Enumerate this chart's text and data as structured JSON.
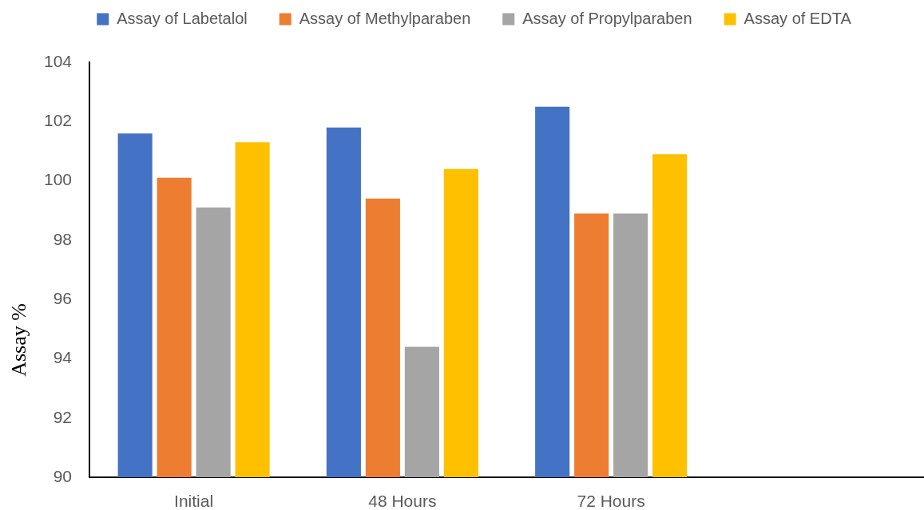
{
  "chart_data": {
    "type": "bar",
    "ylabel": "Assay %",
    "categories": [
      "Initial",
      "48 Hours",
      "72 Hours",
      null
    ],
    "series": [
      {
        "name": "Assay of Labetalol",
        "color": "#4472c4",
        "values": [
          101.6,
          101.8,
          102.5,
          null
        ]
      },
      {
        "name": "Assay of Methylparaben",
        "color": "#ed7d31",
        "values": [
          100.1,
          99.4,
          98.9,
          null
        ]
      },
      {
        "name": "Assay of Propylparaben",
        "color": "#a5a5a5",
        "values": [
          99.1,
          94.4,
          98.9,
          null
        ]
      },
      {
        "name": "Assay of EDTA",
        "color": "#ffc000",
        "values": [
          101.3,
          100.4,
          100.9,
          null
        ]
      }
    ],
    "ylim": [
      90,
      104
    ],
    "yticks": [
      90,
      92,
      94,
      96,
      98,
      100,
      102,
      104
    ],
    "grid": false,
    "legend": "top"
  }
}
